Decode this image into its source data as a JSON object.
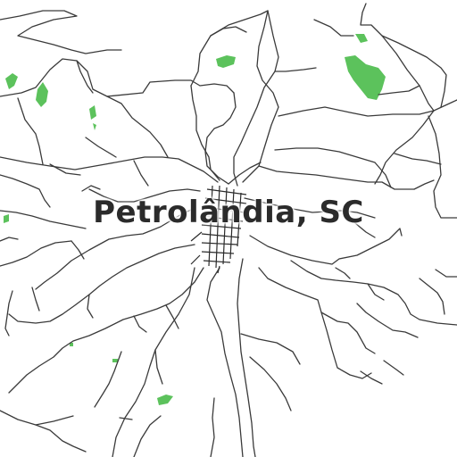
{
  "map": {
    "place_label": "Petrolândia, SC",
    "colors": {
      "background": "#ffffff",
      "road": "#3a3a3a",
      "green_area": "#5cc25c"
    }
  }
}
